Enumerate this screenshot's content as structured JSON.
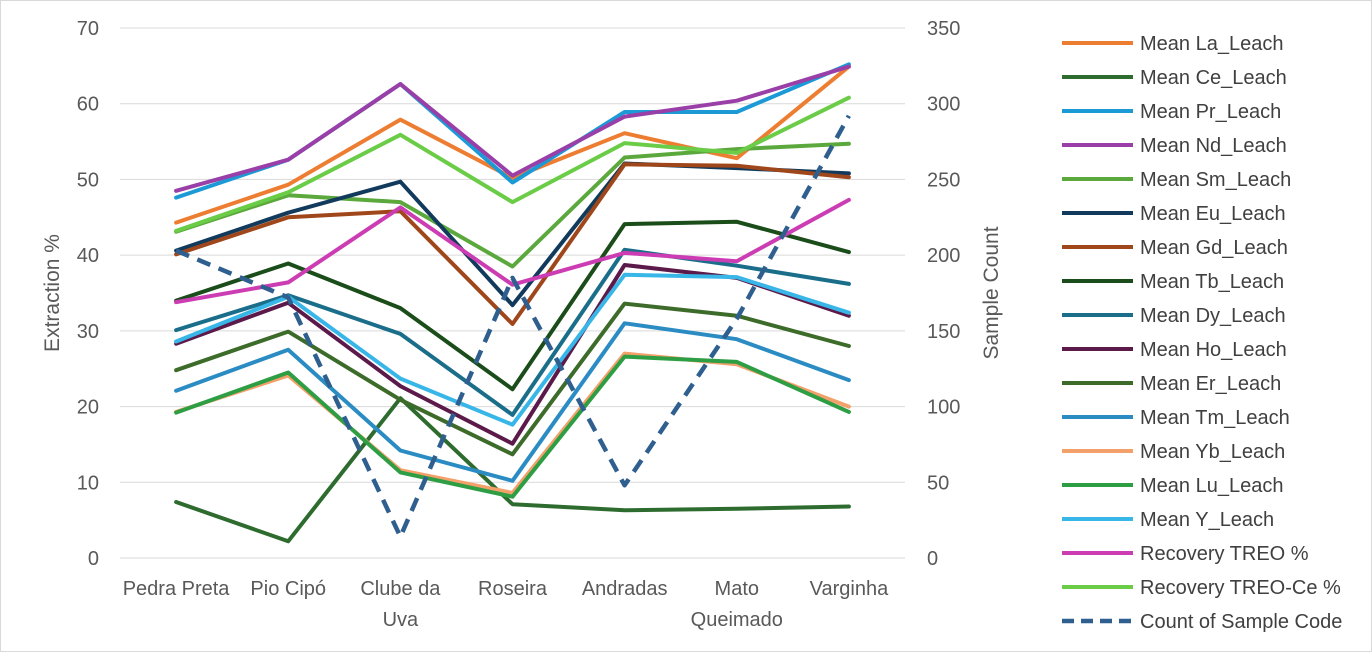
{
  "chart_data": {
    "type": "line",
    "categories": [
      [
        "Pedra Preta"
      ],
      [
        "Pio Cipó"
      ],
      [
        "Clube da",
        "Uva"
      ],
      [
        "Roseira"
      ],
      [
        "Andradas"
      ],
      [
        "Mato",
        "Queimado"
      ],
      [
        "Varginha"
      ]
    ],
    "ylabel": "Extraction %",
    "y2label": "Sample Count",
    "ylim": [
      0,
      70
    ],
    "y2lim": [
      0,
      350
    ],
    "yticks": [
      "0",
      "10",
      "20",
      "30",
      "40",
      "50",
      "60",
      "70"
    ],
    "y2ticks": [
      "0",
      "50",
      "100",
      "150",
      "200",
      "250",
      "300",
      "350"
    ],
    "grid": true,
    "legend_position": "right",
    "series": [
      {
        "name": "Mean La_Leach",
        "color": "#ED7D31",
        "axis": "left",
        "values": [
          44.3,
          49.3,
          57.9,
          50.2,
          56.1,
          52.8,
          64.9
        ]
      },
      {
        "name": "Mean Ce_Leach",
        "color": "#2E6B2E",
        "axis": "left",
        "values": [
          7.4,
          2.2,
          21.1,
          7.1,
          6.3,
          6.5,
          6.8
        ]
      },
      {
        "name": "Mean Pr_Leach",
        "color": "#1B9AD6",
        "axis": "left",
        "values": [
          47.6,
          52.6,
          62.6,
          49.6,
          58.9,
          58.9,
          65.2
        ]
      },
      {
        "name": "Mean Nd_Leach",
        "color": "#9A3FA8",
        "axis": "left",
        "values": [
          48.5,
          52.6,
          62.6,
          50.5,
          58.3,
          60.4,
          64.9
        ]
      },
      {
        "name": "Mean Sm_Leach",
        "color": "#5BA83C",
        "axis": "left",
        "values": [
          43.1,
          47.9,
          47.0,
          38.5,
          52.9,
          54.0,
          54.7
        ]
      },
      {
        "name": "Mean Eu_Leach",
        "color": "#113A5C",
        "axis": "left",
        "values": [
          40.6,
          45.6,
          49.7,
          33.4,
          52.1,
          51.5,
          50.8
        ]
      },
      {
        "name": "Mean Gd_Leach",
        "color": "#A0461B",
        "axis": "left",
        "values": [
          40.1,
          45.0,
          45.8,
          30.9,
          52.0,
          51.8,
          50.3
        ]
      },
      {
        "name": "Mean Tb_Leach",
        "color": "#1A4D1A",
        "axis": "left",
        "values": [
          34.0,
          38.9,
          33.0,
          22.3,
          44.1,
          44.4,
          40.4
        ]
      },
      {
        "name": "Mean Dy_Leach",
        "color": "#1A6E8A",
        "axis": "left",
        "values": [
          30.1,
          34.7,
          29.6,
          18.9,
          40.7,
          38.6,
          36.2
        ]
      },
      {
        "name": "Mean Ho_Leach",
        "color": "#5C1A4A",
        "axis": "left",
        "values": [
          28.3,
          33.7,
          22.7,
          15.1,
          38.7,
          37.0,
          32.0
        ]
      },
      {
        "name": "Mean Er_Leach",
        "color": "#3D6B2A",
        "axis": "left",
        "values": [
          24.8,
          29.9,
          20.9,
          13.7,
          33.6,
          32.0,
          28.0
        ]
      },
      {
        "name": "Mean Tm_Leach",
        "color": "#2B8CC4",
        "axis": "left",
        "values": [
          22.1,
          27.5,
          14.2,
          10.2,
          31.0,
          28.9,
          23.5
        ]
      },
      {
        "name": "Mean Yb_Leach",
        "color": "#F4A06A",
        "axis": "left",
        "values": [
          19.3,
          24.1,
          11.6,
          8.6,
          27.0,
          25.6,
          20.0
        ]
      },
      {
        "name": "Mean Lu_Leach",
        "color": "#2E9E44",
        "axis": "left",
        "values": [
          19.2,
          24.5,
          11.3,
          8.1,
          26.6,
          25.9,
          19.3
        ]
      },
      {
        "name": "Mean Y_Leach",
        "color": "#38B6E8",
        "axis": "left",
        "values": [
          28.6,
          34.5,
          23.7,
          17.6,
          37.4,
          37.1,
          32.4
        ]
      },
      {
        "name": "Recovery TREO %",
        "color": "#CC3DB4",
        "axis": "left",
        "values": [
          33.8,
          36.4,
          46.3,
          36.1,
          40.3,
          39.2,
          47.3
        ]
      },
      {
        "name": "Recovery TREO-Ce %",
        "color": "#6BCC47",
        "axis": "left",
        "values": [
          43.2,
          48.3,
          55.9,
          47.0,
          54.8,
          53.5,
          60.8
        ]
      },
      {
        "name": "Count of Sample Code",
        "color": "#2E5F8F",
        "axis": "right",
        "dashed": true,
        "values": [
          203,
          172,
          14,
          185,
          48,
          158,
          292
        ]
      }
    ]
  }
}
